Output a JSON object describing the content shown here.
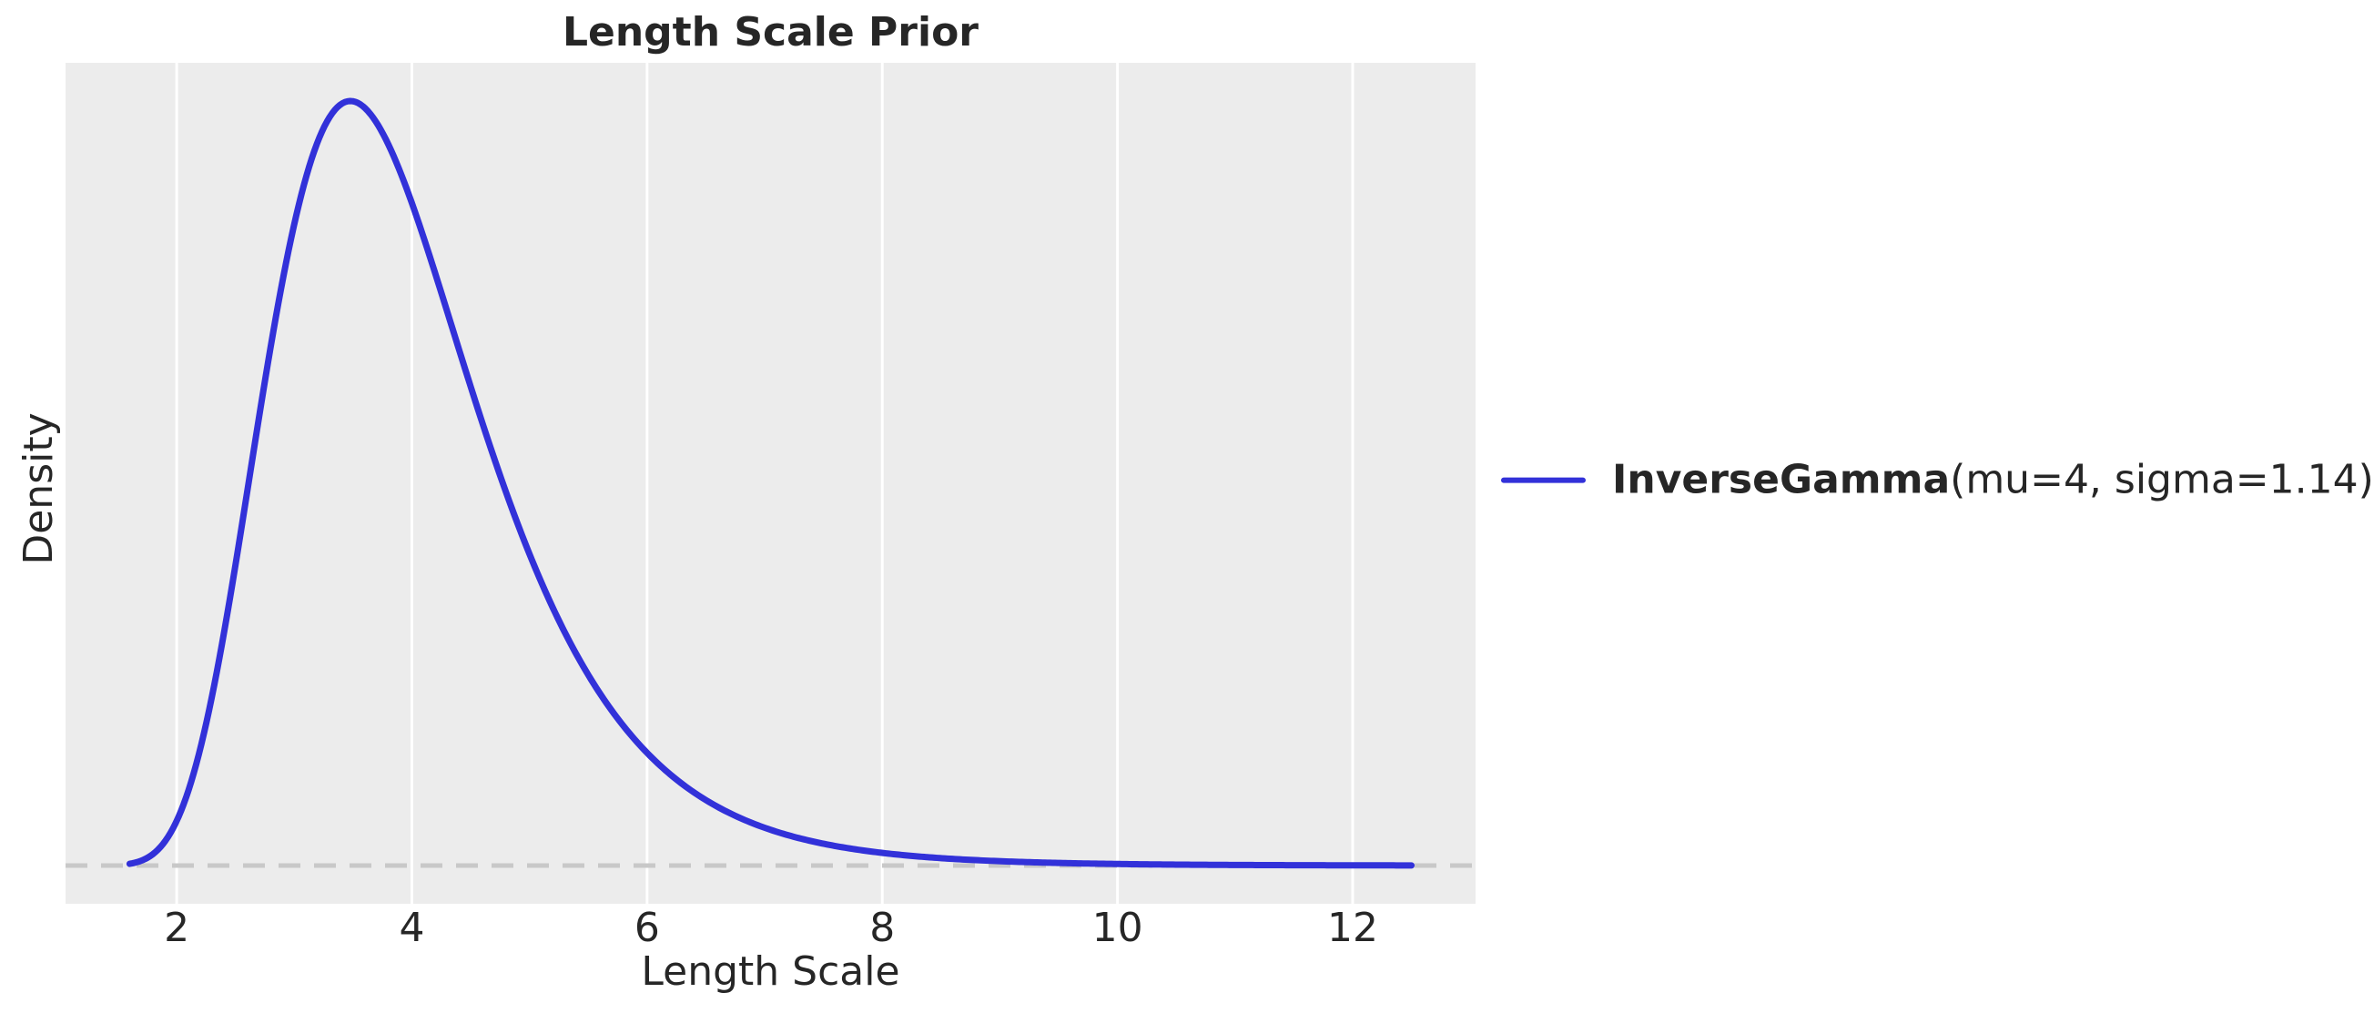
{
  "chart_data": {
    "type": "line",
    "title": "Length Scale Prior",
    "xlabel": "Length Scale",
    "ylabel": "Density",
    "x_ticks": [
      2,
      4,
      6,
      8,
      10,
      12
    ],
    "xlim": [
      1.055,
      13.045
    ],
    "ylim_fraction_of_peak": [
      -0.05,
      1.05
    ],
    "grid": "vertical-only",
    "y_tick_labels": [],
    "colors": {
      "plot_background": "#ececec",
      "gridline": "#ffffff",
      "zero_line": "#c8c8c8",
      "text": "#262626"
    },
    "zero_line": {
      "y": 0,
      "style": "dashed"
    },
    "series": [
      {
        "name": "InverseGamma(mu=4, sigma=1.14)",
        "label_bold": "InverseGamma",
        "label_regular": "(mu=4, sigma=1.14)",
        "distribution": "InverseGamma",
        "mu": 4,
        "sigma": 1.14,
        "x_start": 1.6,
        "x_end": 12.5,
        "color": "#3231d9",
        "peak_x": 3.48
      }
    ],
    "legend": {
      "position": "right-outside-center"
    }
  }
}
